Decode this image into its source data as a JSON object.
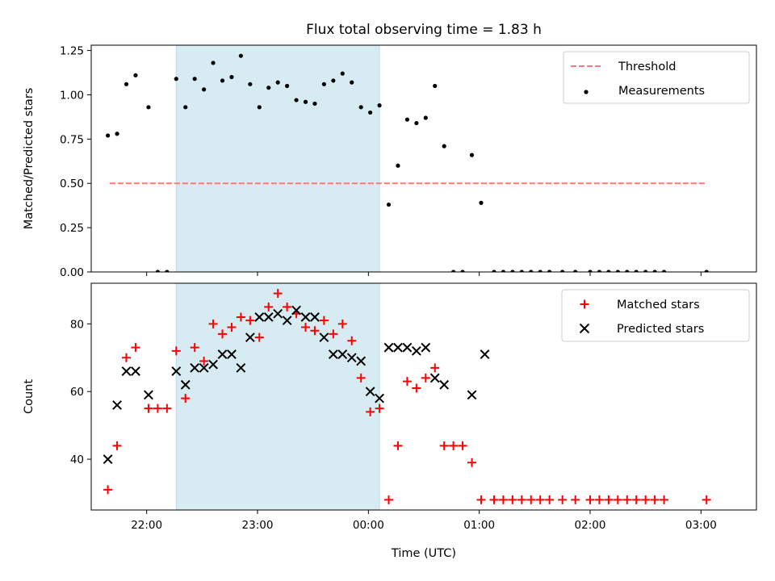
{
  "title": "Flux total observing time = 1.83 h",
  "colors": {
    "threshold": "#ff7777",
    "measurement": "#000000",
    "matched": "#ff0000",
    "predicted": "#000000",
    "span": "#add8e6"
  },
  "chart_data": [
    {
      "type": "scatter",
      "ylabel": "Matched/Predicted stars",
      "xlabel": "",
      "ylim": [
        0,
        1.28
      ],
      "yticks": [
        "0.00",
        "0.25",
        "0.50",
        "0.75",
        "1.00",
        "1.25"
      ],
      "ytick_values": [
        0,
        0.25,
        0.5,
        0.75,
        1.0,
        1.25
      ],
      "shaded_span": [
        "22:16",
        "00:06"
      ],
      "threshold": {
        "name": "Threshold",
        "value": 0.5,
        "x_range": [
          "21:40",
          "03:03"
        ]
      },
      "legend": {
        "placement": "top-right",
        "entries": [
          "Threshold",
          "Measurements"
        ]
      },
      "series": [
        {
          "name": "Measurements",
          "x": [
            "21:39",
            "21:44",
            "21:49",
            "21:54",
            "22:01",
            "22:06",
            "22:11",
            "22:16",
            "22:21",
            "22:26",
            "22:31",
            "22:36",
            "22:41",
            "22:46",
            "22:51",
            "22:56",
            "23:01",
            "23:06",
            "23:11",
            "23:16",
            "23:21",
            "23:26",
            "23:31",
            "23:36",
            "23:41",
            "23:46",
            "23:51",
            "23:56",
            "00:01",
            "00:06",
            "00:11",
            "00:16",
            "00:21",
            "00:26",
            "00:31",
            "00:36",
            "00:41",
            "00:46",
            "00:51",
            "00:56",
            "01:01",
            "01:08",
            "01:13",
            "01:18",
            "01:23",
            "01:28",
            "01:33",
            "01:38",
            "01:45",
            "01:52",
            "02:00",
            "02:05",
            "02:10",
            "02:15",
            "02:20",
            "02:25",
            "02:30",
            "02:35",
            "02:40",
            "03:03"
          ],
          "y": [
            0.77,
            0.78,
            1.06,
            1.11,
            0.93,
            0.0,
            0.0,
            1.09,
            0.93,
            1.09,
            1.03,
            1.18,
            1.08,
            1.1,
            1.22,
            1.06,
            0.93,
            1.04,
            1.07,
            1.05,
            0.97,
            0.96,
            0.95,
            1.06,
            1.08,
            1.12,
            1.07,
            0.93,
            0.9,
            0.94,
            0.38,
            0.6,
            0.86,
            0.84,
            0.87,
            1.05,
            0.71,
            0.0,
            0.0,
            0.66,
            0.39,
            0.0,
            0.0,
            0.0,
            0.0,
            0.0,
            0.0,
            0.0,
            0.0,
            0.0,
            0.0,
            0.0,
            0.0,
            0.0,
            0.0,
            0.0,
            0.0,
            0.0,
            0.0,
            0.0
          ]
        }
      ]
    },
    {
      "type": "scatter",
      "ylabel": "Count",
      "xlabel": "Time (UTC)",
      "ylim": [
        25,
        92
      ],
      "yticks": [
        "40",
        "60",
        "80"
      ],
      "ytick_values": [
        40,
        60,
        80
      ],
      "xlim": [
        "21:30",
        "03:30"
      ],
      "xticks": [
        "22:00",
        "23:00",
        "00:00",
        "01:00",
        "02:00",
        "03:00"
      ],
      "shaded_span": [
        "22:16",
        "00:06"
      ],
      "legend": {
        "placement": "top-right",
        "entries": [
          "Matched stars",
          "Predicted stars"
        ]
      },
      "series": [
        {
          "name": "Matched stars",
          "x": [
            "21:39",
            "21:44",
            "21:49",
            "21:54",
            "22:01",
            "22:06",
            "22:11",
            "22:16",
            "22:21",
            "22:26",
            "22:31",
            "22:36",
            "22:41",
            "22:46",
            "22:51",
            "22:56",
            "23:01",
            "23:06",
            "23:11",
            "23:16",
            "23:21",
            "23:26",
            "23:31",
            "23:36",
            "23:41",
            "23:46",
            "23:51",
            "23:56",
            "00:01",
            "00:06",
            "00:11",
            "00:16",
            "00:21",
            "00:26",
            "00:31",
            "00:36",
            "00:41",
            "00:46",
            "00:51",
            "00:56",
            "01:01",
            "01:08",
            "01:13",
            "01:18",
            "01:23",
            "01:28",
            "01:33",
            "01:38",
            "01:45",
            "01:52",
            "02:00",
            "02:05",
            "02:10",
            "02:15",
            "02:20",
            "02:25",
            "02:30",
            "02:35",
            "02:40",
            "03:03"
          ],
          "y": [
            31,
            44,
            70,
            73,
            55,
            55,
            55,
            72,
            58,
            73,
            69,
            80,
            77,
            79,
            82,
            81,
            76,
            85,
            89,
            85,
            83,
            79,
            78,
            81,
            77,
            80,
            75,
            64,
            54,
            55,
            28,
            44,
            63,
            61,
            64,
            67,
            44,
            44,
            44,
            39,
            28,
            28,
            28,
            28,
            28,
            28,
            28,
            28,
            28,
            28,
            28,
            28,
            28,
            28,
            28,
            28,
            28,
            28,
            28,
            28
          ]
        },
        {
          "name": "Predicted stars",
          "x": [
            "21:39",
            "21:44",
            "21:49",
            "21:54",
            "22:01",
            "22:16",
            "22:21",
            "22:26",
            "22:31",
            "22:36",
            "22:41",
            "22:46",
            "22:51",
            "22:56",
            "23:01",
            "23:06",
            "23:11",
            "23:16",
            "23:21",
            "23:26",
            "23:31",
            "23:36",
            "23:41",
            "23:46",
            "23:51",
            "23:56",
            "00:01",
            "00:06",
            "00:11",
            "00:16",
            "00:21",
            "00:26",
            "00:31",
            "00:36",
            "00:41",
            "00:56",
            "01:03"
          ],
          "y": [
            40,
            56,
            66,
            66,
            59,
            66,
            62,
            67,
            67,
            68,
            71,
            71,
            67,
            76,
            82,
            82,
            83,
            81,
            84,
            82,
            82,
            76,
            71,
            71,
            70,
            69,
            60,
            58,
            73,
            73,
            73,
            72,
            73,
            64,
            62,
            59,
            71
          ]
        }
      ]
    }
  ]
}
